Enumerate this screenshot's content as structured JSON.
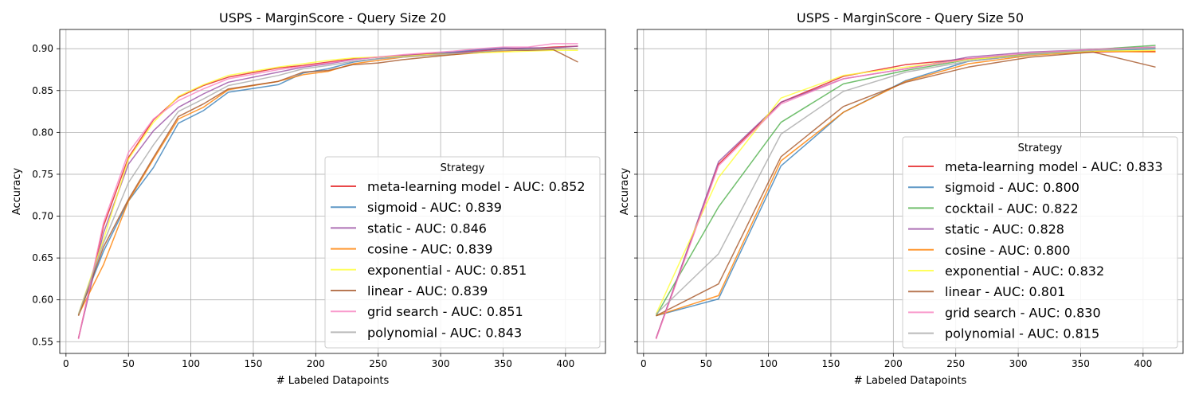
{
  "chart_data": [
    {
      "type": "line",
      "title": "USPS - MarginScore - Query Size 20",
      "xlabel": "# Labeled Datapoints",
      "ylabel": "Accuracy",
      "xlim": [
        -5,
        432
      ],
      "ylim": [
        0.536,
        0.923
      ],
      "xticks": [
        0,
        50,
        100,
        150,
        200,
        250,
        300,
        350,
        400
      ],
      "yticks": [
        0.55,
        0.6,
        0.65,
        0.7,
        0.75,
        0.8,
        0.85,
        0.9
      ],
      "grid": true,
      "legend": {
        "title": "Strategy",
        "placement": "lower-right"
      },
      "x": [
        10,
        30,
        50,
        70,
        90,
        110,
        130,
        170,
        190,
        210,
        230,
        250,
        270,
        290,
        310,
        330,
        350,
        370,
        390,
        410
      ],
      "series": [
        {
          "name": "meta-learning model - AUC: 0.852",
          "color": "#e41a1c",
          "values": [
            0.554,
            0.688,
            0.77,
            0.815,
            0.842,
            0.856,
            0.866,
            0.877,
            0.88,
            0.884,
            0.888,
            0.89,
            0.892,
            0.894,
            0.895,
            0.897,
            0.9,
            0.9,
            0.902,
            0.903
          ]
        },
        {
          "name": "sigmoid - AUC: 0.839",
          "color": "#377eb8",
          "values": [
            0.582,
            0.658,
            0.718,
            0.758,
            0.811,
            0.826,
            0.848,
            0.857,
            0.871,
            0.876,
            0.884,
            0.888,
            0.891,
            0.893,
            0.896,
            0.899,
            0.901,
            0.9,
            0.9,
            0.9
          ]
        },
        {
          "name": "static - AUC: 0.846",
          "color": "#984ea3",
          "values": [
            0.554,
            0.68,
            0.762,
            0.802,
            0.83,
            0.846,
            0.86,
            0.872,
            0.878,
            0.882,
            0.887,
            0.89,
            0.892,
            0.893,
            0.895,
            0.898,
            0.9,
            0.901,
            0.901,
            0.903
          ]
        },
        {
          "name": "cosine - AUC: 0.839",
          "color": "#ff7f00",
          "values": [
            0.582,
            0.642,
            0.718,
            0.768,
            0.816,
            0.83,
            0.851,
            0.861,
            0.869,
            0.873,
            0.882,
            0.886,
            0.89,
            0.892,
            0.893,
            0.895,
            0.897,
            0.899,
            0.9,
            0.9
          ]
        },
        {
          "name": "exponential - AUC: 0.851",
          "color": "#ffff33",
          "values": [
            0.583,
            0.672,
            0.768,
            0.812,
            0.843,
            0.857,
            0.868,
            0.878,
            0.882,
            0.886,
            0.889,
            0.89,
            0.891,
            0.893,
            0.894,
            0.895,
            0.896,
            0.897,
            0.898,
            0.898
          ]
        },
        {
          "name": "linear - AUC: 0.839",
          "color": "#a65628",
          "values": [
            0.581,
            0.663,
            0.72,
            0.77,
            0.819,
            0.834,
            0.852,
            0.861,
            0.872,
            0.874,
            0.881,
            0.883,
            0.887,
            0.89,
            0.893,
            0.896,
            0.898,
            0.898,
            0.899,
            0.884
          ]
        },
        {
          "name": "grid search - AUC: 0.851",
          "color": "#f781bf",
          "values": [
            0.553,
            0.692,
            0.776,
            0.816,
            0.838,
            0.852,
            0.864,
            0.875,
            0.879,
            0.883,
            0.887,
            0.89,
            0.893,
            0.895,
            0.897,
            0.9,
            0.902,
            0.902,
            0.906,
            0.906
          ]
        },
        {
          "name": "polynomial - AUC: 0.843",
          "color": "#a9a9a9",
          "values": [
            0.583,
            0.668,
            0.74,
            0.785,
            0.825,
            0.84,
            0.856,
            0.868,
            0.876,
            0.88,
            0.885,
            0.888,
            0.89,
            0.892,
            0.894,
            0.896,
            0.898,
            0.899,
            0.9,
            0.9
          ]
        }
      ]
    },
    {
      "type": "line",
      "title": "USPS - MarginScore - Query Size 50",
      "xlabel": "# Labeled Datapoints",
      "ylabel": "Accuracy",
      "xlim": [
        -5,
        432
      ],
      "ylim": [
        0.536,
        0.923
      ],
      "xticks": [
        0,
        50,
        100,
        150,
        200,
        250,
        300,
        350,
        400
      ],
      "yticks": [
        0.55,
        0.6,
        0.65,
        0.7,
        0.75,
        0.8,
        0.85,
        0.9
      ],
      "grid": true,
      "legend": {
        "title": "Strategy",
        "placement": "lower-right"
      },
      "x": [
        10,
        60,
        110,
        160,
        210,
        260,
        310,
        360,
        410
      ],
      "series": [
        {
          "name": "meta-learning model - AUC: 0.833",
          "color": "#e41a1c",
          "values": [
            0.554,
            0.762,
            0.836,
            0.867,
            0.881,
            0.888,
            0.893,
            0.896,
            0.897
          ]
        },
        {
          "name": "sigmoid - AUC: 0.800",
          "color": "#377eb8",
          "values": [
            0.581,
            0.601,
            0.76,
            0.824,
            0.862,
            0.885,
            0.893,
            0.897,
            0.9
          ]
        },
        {
          "name": "cocktail - AUC: 0.822",
          "color": "#4daf4a",
          "values": [
            0.581,
            0.711,
            0.812,
            0.858,
            0.874,
            0.887,
            0.894,
            0.899,
            0.904
          ]
        },
        {
          "name": "static - AUC: 0.828",
          "color": "#984ea3",
          "values": [
            0.554,
            0.765,
            0.836,
            0.864,
            0.876,
            0.89,
            0.896,
            0.899,
            0.902
          ]
        },
        {
          "name": "cosine - AUC: 0.800",
          "color": "#ff7f00",
          "values": [
            0.581,
            0.605,
            0.766,
            0.824,
            0.861,
            0.882,
            0.892,
            0.897,
            0.896
          ]
        },
        {
          "name": "exponential - AUC: 0.832",
          "color": "#ffff33",
          "values": [
            0.583,
            0.746,
            0.841,
            0.868,
            0.878,
            0.887,
            0.893,
            0.897,
            0.898
          ]
        },
        {
          "name": "linear - AUC: 0.801",
          "color": "#a65628",
          "values": [
            0.581,
            0.619,
            0.771,
            0.831,
            0.86,
            0.878,
            0.89,
            0.896,
            0.878
          ]
        },
        {
          "name": "grid search - AUC: 0.830",
          "color": "#f781bf",
          "values": [
            0.553,
            0.76,
            0.834,
            0.864,
            0.876,
            0.888,
            0.895,
            0.899,
            0.902
          ]
        },
        {
          "name": "polynomial - AUC: 0.815",
          "color": "#a9a9a9",
          "values": [
            0.583,
            0.655,
            0.798,
            0.849,
            0.872,
            0.885,
            0.893,
            0.898,
            0.901
          ]
        }
      ]
    }
  ]
}
